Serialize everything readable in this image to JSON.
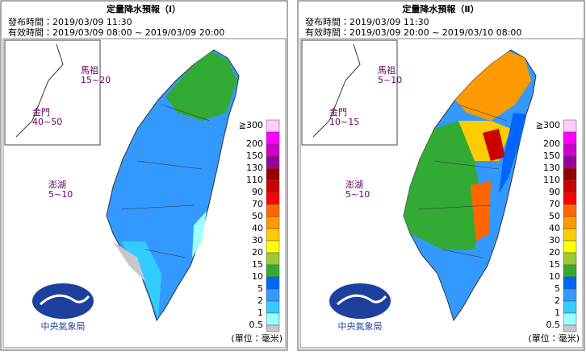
{
  "panels": [
    {
      "title": "定量降水預報（Ⅰ）",
      "issued": "發布時間：2019/03/09 11:30",
      "valid": "有效時間：2019/03/09 08:00 ~ 2019/03/09 20:00",
      "islands": [
        {
          "name": "馬祖",
          "amount": "15~20"
        },
        {
          "name": "金門",
          "amount": "40~50"
        },
        {
          "name": "澎湖",
          "amount": "5~10"
        }
      ]
    },
    {
      "title": "定量降水預報（Ⅱ）",
      "issued": "發布時間：2019/03/09 11:30",
      "valid": "有效時間：2019/03/09 20:00 ~ 2019/03/10 08:00",
      "islands": [
        {
          "name": "馬祖",
          "amount": "5~10"
        },
        {
          "name": "金門",
          "amount": "10~15"
        },
        {
          "name": "澎湖",
          "amount": "5~10"
        }
      ]
    }
  ],
  "legend": {
    "labels": [
      "≧300",
      "200",
      "150",
      "130",
      "110",
      "90",
      "70",
      "50",
      "40",
      "30",
      "20",
      "15",
      "10",
      "5",
      "2",
      "1",
      "0.5"
    ],
    "colors": [
      "#ffccff",
      "#ff00ff",
      "#cc00cc",
      "#990099",
      "#990000",
      "#cc0000",
      "#ff0000",
      "#ff6600",
      "#ff9900",
      "#ffcc00",
      "#ffff00",
      "#99cc33",
      "#33aa33",
      "#0066ff",
      "#3399ff",
      "#33ccff",
      "#99ffff",
      "#c8c8c8"
    ],
    "unit": "(單位：毫米)"
  },
  "logo": "中央氣象局"
}
